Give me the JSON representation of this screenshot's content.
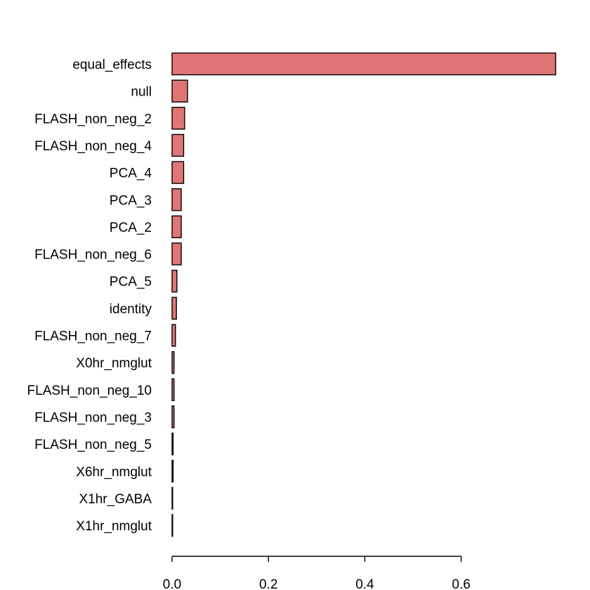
{
  "chart_data": {
    "type": "bar",
    "orientation": "horizontal",
    "title": "",
    "xlabel": "",
    "ylabel": "",
    "xlim": [
      0,
      0.8
    ],
    "x_ticks": [
      0.0,
      0.2,
      0.4,
      0.6
    ],
    "x_tick_labels": [
      "0.0",
      "0.2",
      "0.4",
      "0.6"
    ],
    "grid": false,
    "legend": "none",
    "bar_color": "#e07575",
    "bar_edge_color": "#000000",
    "categories": [
      "equal_effects",
      "null",
      "FLASH_non_neg_2",
      "FLASH_non_neg_4",
      "PCA_4",
      "PCA_3",
      "PCA_2",
      "FLASH_non_neg_6",
      "PCA_5",
      "identity",
      "FLASH_non_neg_7",
      "X0hr_nmglut",
      "FLASH_non_neg_10",
      "FLASH_non_neg_3",
      "FLASH_non_neg_5",
      "X6hr_nmglut",
      "X1hr_GABA",
      "X1hr_nmglut"
    ],
    "values": [
      0.796,
      0.032,
      0.026,
      0.024,
      0.024,
      0.019,
      0.019,
      0.019,
      0.01,
      0.009,
      0.007,
      0.004,
      0.004,
      0.004,
      0.002,
      0.002,
      0.0005,
      0.0005
    ]
  }
}
